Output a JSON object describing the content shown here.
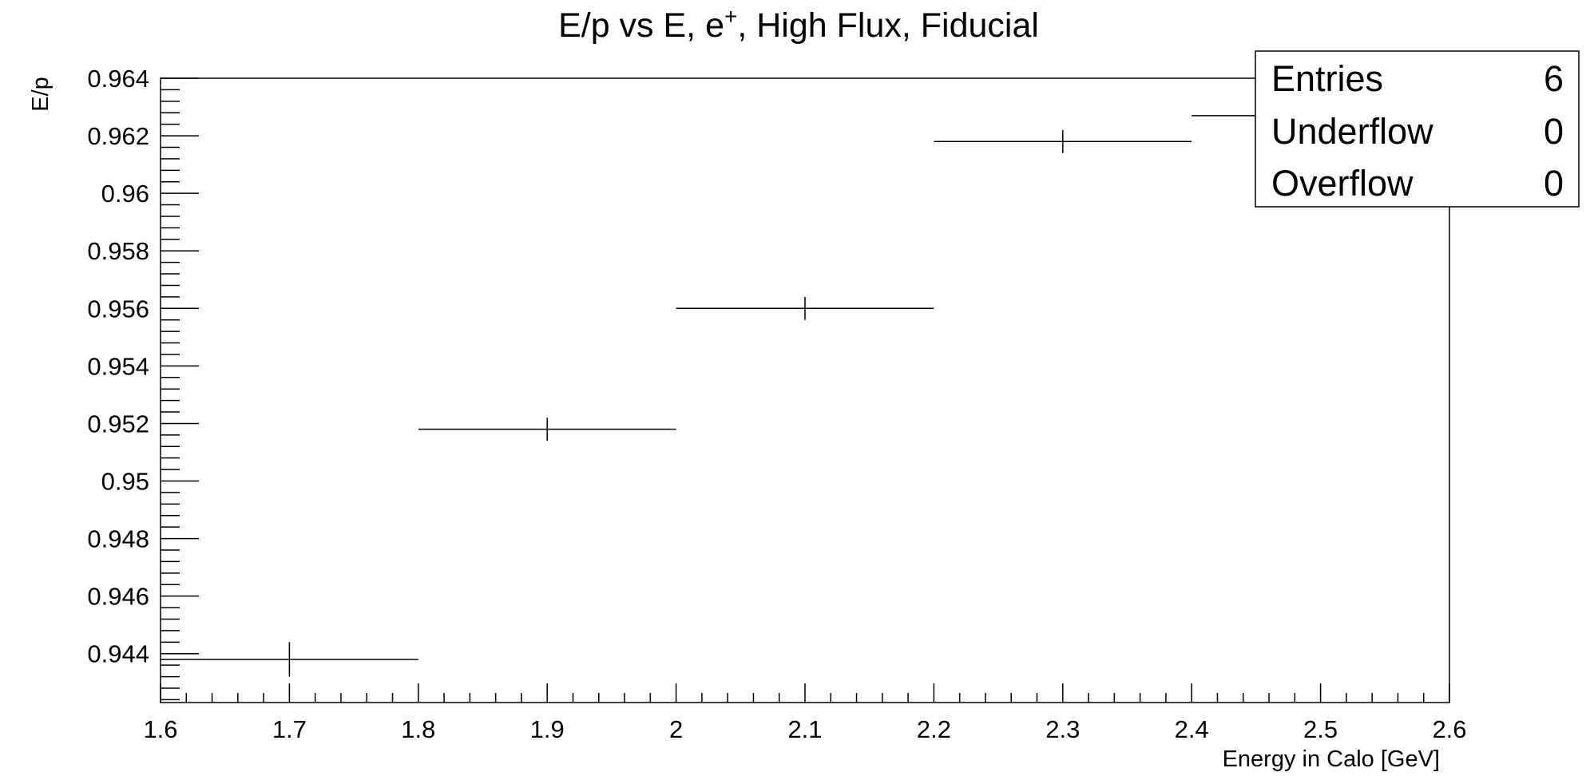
{
  "chart_data": {
    "type": "scatter",
    "title": "E/p vs E, e",
    "title_superscript": "+",
    "title_rest": ", High Flux, Fiducial",
    "xlabel": "Energy in Calo [GeV]",
    "ylabel": "E/p",
    "xlim": [
      1.6,
      2.6
    ],
    "ylim": [
      0.9423,
      0.964
    ],
    "x_ticks": [
      1.6,
      1.7,
      1.8,
      1.9,
      2,
      2.1,
      2.2,
      2.3,
      2.4,
      2.5,
      2.6
    ],
    "x_tick_labels": [
      "1.6",
      "1.7",
      "1.8",
      "1.9",
      "2",
      "2.1",
      "2.2",
      "2.3",
      "2.4",
      "2.5",
      "2.6"
    ],
    "y_ticks": [
      0.944,
      0.946,
      0.948,
      0.95,
      0.952,
      0.954,
      0.956,
      0.958,
      0.96,
      0.962,
      0.964
    ],
    "y_tick_labels": [
      "0.944",
      "0.946",
      "0.948",
      "0.95",
      "0.952",
      "0.954",
      "0.956",
      "0.958",
      "0.96",
      "0.962",
      "0.964"
    ],
    "grid": false,
    "series": [
      {
        "points": [
          {
            "x": 1.7,
            "y": 0.9438,
            "xerr": 0.1,
            "yerr": 0.0006
          },
          {
            "x": 1.9,
            "y": 0.9518,
            "xerr": 0.1,
            "yerr": 0.0004
          },
          {
            "x": 2.1,
            "y": 0.956,
            "xerr": 0.1,
            "yerr": 0.0004
          },
          {
            "x": 2.3,
            "y": 0.9618,
            "xerr": 0.1,
            "yerr": 0.0004
          },
          {
            "x": 2.5,
            "y": 0.9627,
            "xerr": 0.1,
            "yerr": 0.0004
          }
        ]
      }
    ],
    "stats_box": {
      "position": "top-right",
      "rows": [
        {
          "label": "Entries",
          "value": "6"
        },
        {
          "label": "Underflow",
          "value": "0"
        },
        {
          "label": "Overflow",
          "value": "0"
        }
      ]
    }
  }
}
